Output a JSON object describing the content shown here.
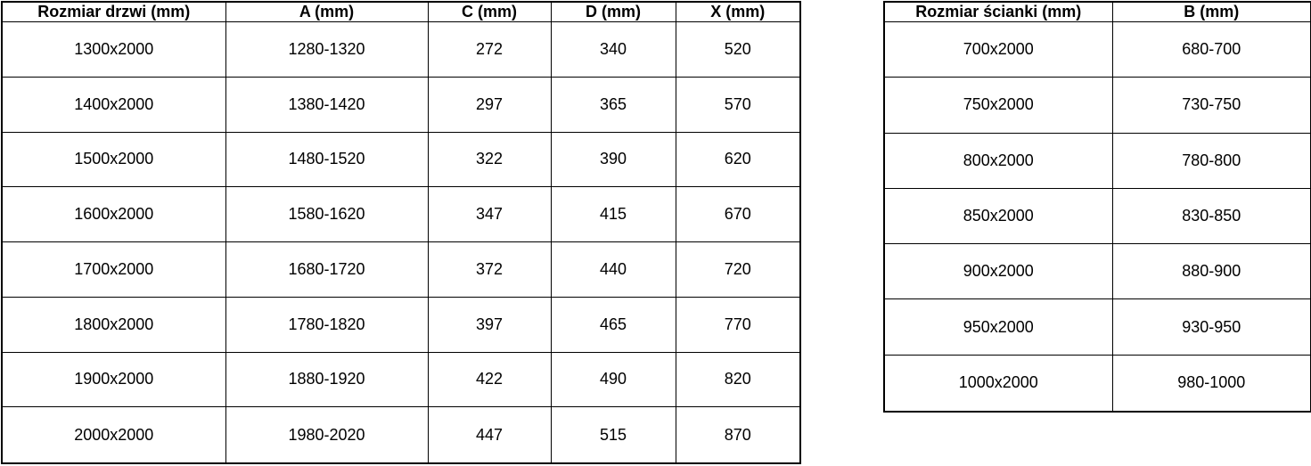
{
  "colors": {
    "background": "#ffffff",
    "border": "#000000",
    "text": "#000000"
  },
  "doors_table": {
    "headers": [
      "Rozmiar drzwi (mm)",
      "A (mm)",
      "C (mm)",
      "D (mm)",
      "X (mm)"
    ],
    "rows": [
      [
        "1300x2000",
        "1280-1320",
        "272",
        "340",
        "520"
      ],
      [
        "1400x2000",
        "1380-1420",
        "297",
        "365",
        "570"
      ],
      [
        "1500x2000",
        "1480-1520",
        "322",
        "390",
        "620"
      ],
      [
        "1600x2000",
        "1580-1620",
        "347",
        "415",
        "670"
      ],
      [
        "1700x2000",
        "1680-1720",
        "372",
        "440",
        "720"
      ],
      [
        "1800x2000",
        "1780-1820",
        "397",
        "465",
        "770"
      ],
      [
        "1900x2000",
        "1880-1920",
        "422",
        "490",
        "820"
      ],
      [
        "2000x2000",
        "1980-2020",
        "447",
        "515",
        "870"
      ]
    ]
  },
  "walls_table": {
    "headers": [
      "Rozmiar ścianki (mm)",
      "B (mm)"
    ],
    "rows": [
      [
        "700x2000",
        "680-700"
      ],
      [
        "750x2000",
        "730-750"
      ],
      [
        "800x2000",
        "780-800"
      ],
      [
        "850x2000",
        "830-850"
      ],
      [
        "900x2000",
        "880-900"
      ],
      [
        "950x2000",
        "930-950"
      ],
      [
        "1000x2000",
        "980-1000"
      ]
    ]
  }
}
